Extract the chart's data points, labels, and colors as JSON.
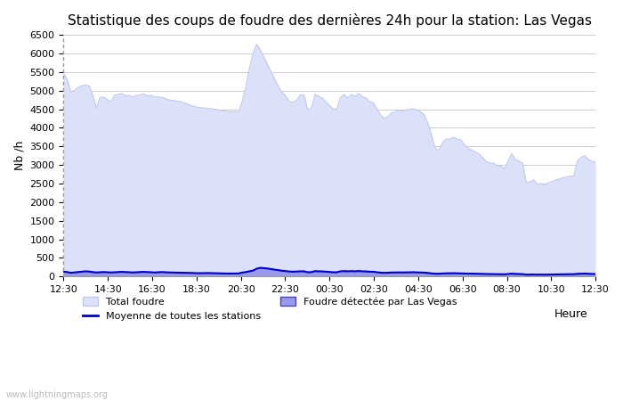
{
  "title": "Statistique des coups de foudre des dernières 24h pour la station: Las Vegas",
  "ylabel": "Nb /h",
  "xlabel": "Heure",
  "watermark": "www.lightningmaps.org",
  "x_labels": [
    "12:30",
    "14:30",
    "16:30",
    "18:30",
    "20:30",
    "22:30",
    "00:30",
    "02:30",
    "04:30",
    "06:30",
    "08:30",
    "10:30",
    "12:30"
  ],
  "ylim": [
    0,
    6500
  ],
  "yticks": [
    0,
    500,
    1000,
    1500,
    2000,
    2500,
    3000,
    3500,
    4000,
    4500,
    5000,
    5500,
    6000,
    6500
  ],
  "total_foudre_color": "#dce0f8",
  "total_foudre_line_color": "#c0c8f0",
  "station_foudre_color": "#9999ee",
  "station_foudre_line_color": "#4444bb",
  "moyenne_color": "#0000cc",
  "background_color": "#ffffff",
  "grid_color": "#cccccc",
  "title_fontsize": 11,
  "legend_labels": [
    "Total foudre",
    "Moyenne de toutes les stations",
    "Foudre détectée par Las Vegas"
  ],
  "total_foudre": [
    5470,
    5300,
    4960,
    5000,
    5090,
    5130,
    5150,
    5130,
    4880,
    4540,
    4820,
    4830,
    4760,
    4700,
    4880,
    4900,
    4920,
    4860,
    4870,
    4830,
    4870,
    4880,
    4920,
    4860,
    4870,
    4830,
    4830,
    4820,
    4780,
    4750,
    4740,
    4720,
    4700,
    4680,
    4640,
    4600,
    4570,
    4550,
    4540,
    4530,
    4520,
    4510,
    4490,
    4470,
    4450,
    4440,
    4430,
    4430,
    4420,
    4700,
    5100,
    5600,
    6000,
    6250,
    6100,
    5900,
    5700,
    5500,
    5300,
    5100,
    4950,
    4850,
    4700,
    4680,
    4750,
    4880,
    4880,
    4500,
    4520,
    4900,
    4850,
    4800,
    4700,
    4600,
    4500,
    4500,
    4820,
    4900,
    4800,
    4900,
    4850,
    4920,
    4840,
    4800,
    4700,
    4680,
    4500,
    4350,
    4250,
    4300,
    4400,
    4430,
    4470,
    4450,
    4480,
    4500,
    4510,
    4480,
    4430,
    4350,
    4120,
    3800,
    3450,
    3400,
    3600,
    3700,
    3700,
    3750,
    3700,
    3680,
    3550,
    3450,
    3400,
    3350,
    3300,
    3200,
    3100,
    3050,
    3050,
    2980,
    2970,
    2900,
    3100,
    3300,
    3150,
    3100,
    3050,
    2520,
    2550,
    2600,
    2480,
    2500,
    2460,
    2520,
    2550,
    2600,
    2620,
    2650,
    2680,
    2700,
    2700,
    3100,
    3200,
    3250,
    3150,
    3100,
    3080
  ],
  "station_foudre": [
    130,
    120,
    100,
    110,
    120,
    130,
    140,
    135,
    120,
    110,
    115,
    120,
    115,
    110,
    115,
    120,
    125,
    120,
    115,
    110,
    115,
    120,
    125,
    120,
    115,
    110,
    115,
    120,
    115,
    110,
    108,
    105,
    102,
    100,
    98,
    95,
    93,
    90,
    90,
    92,
    93,
    90,
    88,
    85,
    83,
    80,
    80,
    82,
    83,
    105,
    120,
    140,
    160,
    210,
    235,
    225,
    215,
    200,
    185,
    170,
    155,
    145,
    135,
    130,
    135,
    140,
    140,
    115,
    118,
    145,
    140,
    138,
    130,
    120,
    115,
    115,
    140,
    145,
    140,
    145,
    140,
    148,
    140,
    138,
    130,
    128,
    115,
    105,
    100,
    102,
    108,
    110,
    112,
    110,
    112,
    115,
    116,
    113,
    108,
    105,
    95,
    85,
    75,
    75,
    82,
    87,
    87,
    90,
    87,
    85,
    80,
    78,
    78,
    75,
    73,
    70,
    68,
    66,
    66,
    63,
    62,
    60,
    68,
    76,
    70,
    68,
    65,
    50,
    52,
    55,
    50,
    52,
    50,
    52,
    55,
    57,
    58,
    60,
    62,
    63,
    63,
    72,
    77,
    80,
    73,
    70,
    68
  ],
  "moyenne": [
    130,
    120,
    100,
    110,
    120,
    130,
    140,
    135,
    120,
    110,
    115,
    120,
    115,
    110,
    115,
    120,
    125,
    120,
    115,
    110,
    115,
    120,
    125,
    120,
    115,
    110,
    115,
    120,
    115,
    110,
    108,
    105,
    102,
    100,
    98,
    95,
    93,
    90,
    90,
    92,
    93,
    90,
    88,
    85,
    83,
    80,
    80,
    82,
    83,
    105,
    120,
    140,
    160,
    210,
    235,
    225,
    215,
    200,
    185,
    170,
    155,
    145,
    135,
    130,
    135,
    140,
    140,
    115,
    118,
    145,
    140,
    138,
    130,
    120,
    115,
    115,
    140,
    145,
    140,
    145,
    140,
    148,
    140,
    138,
    130,
    128,
    115,
    105,
    100,
    102,
    108,
    110,
    112,
    110,
    112,
    115,
    116,
    113,
    108,
    105,
    95,
    85,
    75,
    75,
    82,
    87,
    87,
    90,
    87,
    85,
    80,
    78,
    78,
    75,
    73,
    70,
    68,
    66,
    66,
    63,
    62,
    60,
    68,
    76,
    70,
    68,
    65,
    50,
    52,
    55,
    50,
    52,
    50,
    52,
    55,
    57,
    58,
    60,
    62,
    63,
    63,
    72,
    77,
    80,
    73,
    70,
    68
  ]
}
